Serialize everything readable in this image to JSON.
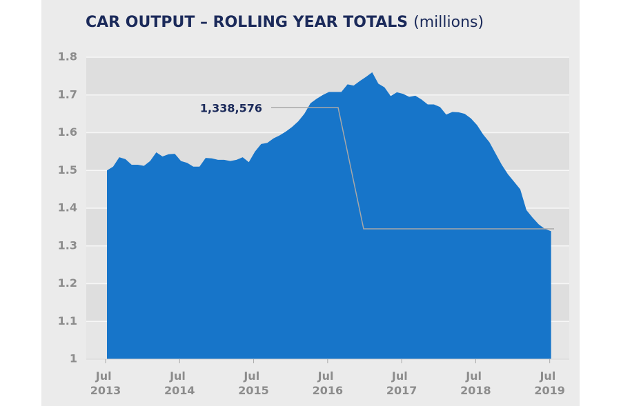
{
  "chart_data": {
    "type": "area",
    "title": "CAR OUTPUT – ROLLING YEAR TOTALS",
    "subtitle": "(millions)",
    "annotation": "1,338,576",
    "color": "#1775c9",
    "categories": [
      "Jul 2013",
      null,
      null,
      null,
      null,
      null,
      null,
      null,
      null,
      null,
      null,
      null,
      "Jul 2014",
      null,
      null,
      null,
      null,
      null,
      null,
      null,
      null,
      null,
      null,
      null,
      "Jul 2015",
      null,
      null,
      null,
      null,
      null,
      null,
      null,
      null,
      null,
      null,
      null,
      "Jul 2016",
      null,
      null,
      null,
      null,
      null,
      null,
      null,
      null,
      null,
      null,
      null,
      "Jul 2017",
      null,
      null,
      null,
      null,
      null,
      null,
      null,
      null,
      null,
      null,
      null,
      "Jul 2018",
      null,
      null,
      null,
      null,
      null,
      null,
      null,
      null,
      null,
      null,
      null,
      "Jul 2019"
    ],
    "values": [
      1.5,
      1.51,
      1.535,
      1.53,
      1.515,
      1.515,
      1.512,
      1.525,
      1.548,
      1.537,
      1.543,
      1.544,
      1.525,
      1.52,
      1.51,
      1.51,
      1.533,
      1.532,
      1.528,
      1.528,
      1.525,
      1.528,
      1.535,
      1.522,
      1.55,
      1.57,
      1.573,
      1.585,
      1.593,
      1.603,
      1.615,
      1.63,
      1.65,
      1.678,
      1.69,
      1.7,
      1.708,
      1.708,
      1.708,
      1.728,
      1.725,
      1.737,
      1.748,
      1.76,
      1.73,
      1.72,
      1.697,
      1.707,
      1.703,
      1.695,
      1.698,
      1.688,
      1.675,
      1.675,
      1.668,
      1.648,
      1.655,
      1.654,
      1.65,
      1.638,
      1.62,
      1.595,
      1.575,
      1.545,
      1.515,
      1.49,
      1.47,
      1.45,
      1.395,
      1.375,
      1.357,
      1.345,
      1.339
    ],
    "ylim": [
      1,
      1.8
    ],
    "yticks": [
      1,
      1.1,
      1.2,
      1.3,
      1.4,
      1.5,
      1.6,
      1.7,
      1.8
    ],
    "grid": true
  }
}
